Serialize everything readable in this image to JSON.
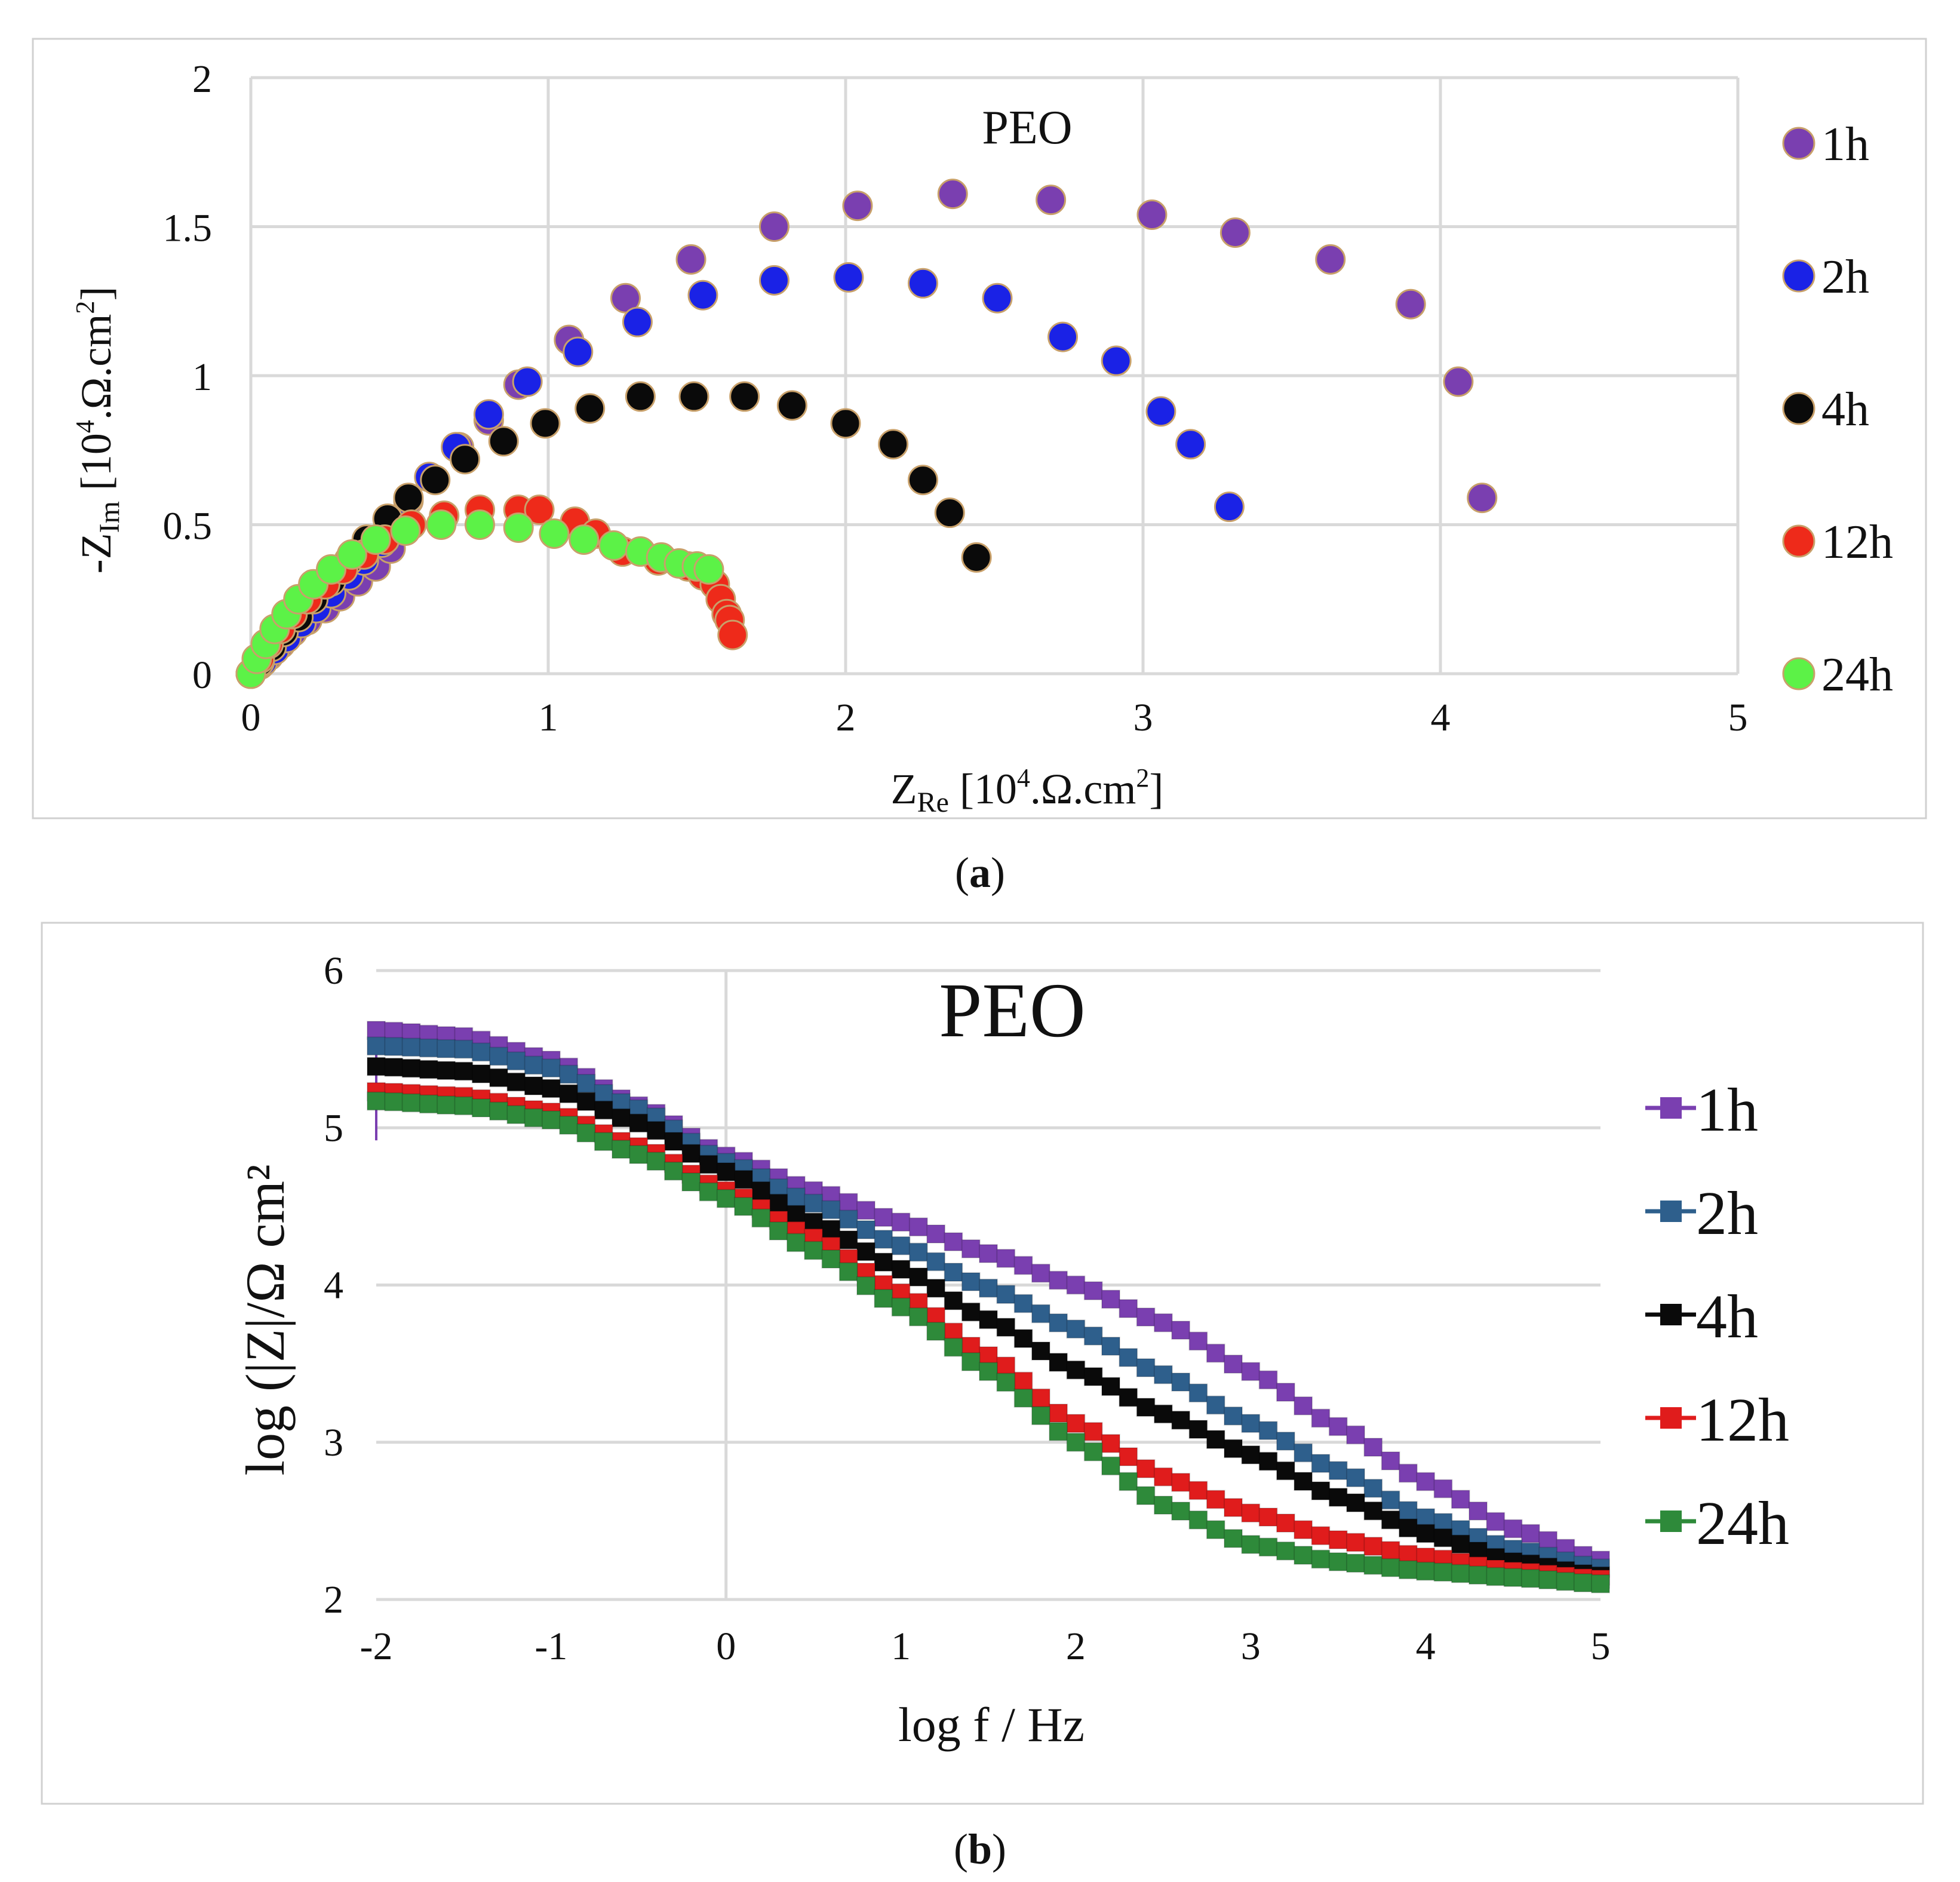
{
  "panels": [
    {
      "label": "a",
      "chart_data": {
        "type": "scatter",
        "title": "PEO",
        "xlabel": "Z_Re [10^4.Ω.cm²]",
        "ylabel": "-Z_Im [10^4.Ω.cm²]",
        "xlim": [
          0,
          5
        ],
        "ylim": [
          0,
          2
        ],
        "xticks": [
          0,
          1,
          2,
          3,
          4,
          5
        ],
        "yticks": [
          0,
          0.5,
          1,
          1.5,
          2
        ],
        "xtick_labels": [
          "0",
          "1",
          "2",
          "3",
          "4",
          "5"
        ],
        "ytick_labels": [
          "0",
          "0.5",
          "1",
          "1.5",
          "2"
        ],
        "grid": "horizontal-and-vertical",
        "legend_position": "right",
        "series": [
          {
            "name": "1h",
            "color": "#7a3fb0",
            "points": [
              [
                0,
                0
              ],
              [
                0.03,
                0.03
              ],
              [
                0.06,
                0.06
              ],
              [
                0.1,
                0.1
              ],
              [
                0.14,
                0.14
              ],
              [
                0.19,
                0.18
              ],
              [
                0.25,
                0.22
              ],
              [
                0.3,
                0.26
              ],
              [
                0.36,
                0.31
              ],
              [
                0.42,
                0.36
              ],
              [
                0.47,
                0.42
              ],
              [
                0.53,
                0.58
              ],
              [
                0.7,
                0.76
              ],
              [
                0.8,
                0.85
              ],
              [
                0.9,
                0.97
              ],
              [
                1.07,
                1.12
              ],
              [
                1.26,
                1.26
              ],
              [
                1.48,
                1.39
              ],
              [
                1.76,
                1.5
              ],
              [
                2.04,
                1.57
              ],
              [
                2.36,
                1.61
              ],
              [
                2.69,
                1.59
              ],
              [
                3.03,
                1.54
              ],
              [
                3.31,
                1.48
              ],
              [
                3.63,
                1.39
              ],
              [
                3.9,
                1.24
              ],
              [
                4.06,
                0.98
              ],
              [
                4.14,
                0.59
              ]
            ]
          },
          {
            "name": "2h",
            "color": "#1a22e6",
            "points": [
              [
                0,
                0
              ],
              [
                0.04,
                0.04
              ],
              [
                0.08,
                0.08
              ],
              [
                0.12,
                0.12
              ],
              [
                0.17,
                0.17
              ],
              [
                0.22,
                0.22
              ],
              [
                0.27,
                0.27
              ],
              [
                0.33,
                0.33
              ],
              [
                0.38,
                0.38
              ],
              [
                0.44,
                0.44
              ],
              [
                0.5,
                0.52
              ],
              [
                0.6,
                0.66
              ],
              [
                0.69,
                0.76
              ],
              [
                0.8,
                0.87
              ],
              [
                0.93,
                0.98
              ],
              [
                1.1,
                1.08
              ],
              [
                1.3,
                1.18
              ],
              [
                1.52,
                1.27
              ],
              [
                1.76,
                1.32
              ],
              [
                2.01,
                1.33
              ],
              [
                2.26,
                1.31
              ],
              [
                2.51,
                1.26
              ],
              [
                2.73,
                1.13
              ],
              [
                2.91,
                1.05
              ],
              [
                3.06,
                0.88
              ],
              [
                3.16,
                0.77
              ],
              [
                3.29,
                0.56
              ]
            ]
          },
          {
            "name": "4h",
            "color": "#0a0a0a",
            "points": [
              [
                0,
                0
              ],
              [
                0.03,
                0.04
              ],
              [
                0.07,
                0.09
              ],
              [
                0.11,
                0.14
              ],
              [
                0.16,
                0.19
              ],
              [
                0.21,
                0.25
              ],
              [
                0.27,
                0.31
              ],
              [
                0.33,
                0.38
              ],
              [
                0.39,
                0.45
              ],
              [
                0.46,
                0.52
              ],
              [
                0.53,
                0.59
              ],
              [
                0.62,
                0.65
              ],
              [
                0.72,
                0.72
              ],
              [
                0.85,
                0.78
              ],
              [
                0.99,
                0.84
              ],
              [
                1.14,
                0.89
              ],
              [
                1.31,
                0.93
              ],
              [
                1.49,
                0.93
              ],
              [
                1.66,
                0.93
              ],
              [
                1.82,
                0.9
              ],
              [
                2.0,
                0.84
              ],
              [
                2.16,
                0.77
              ],
              [
                2.26,
                0.65
              ],
              [
                2.35,
                0.54
              ],
              [
                2.44,
                0.39
              ]
            ]
          },
          {
            "name": "12h",
            "color": "#ee2a1a",
            "points": [
              [
                0,
                0
              ],
              [
                0.03,
                0.05
              ],
              [
                0.06,
                0.1
              ],
              [
                0.1,
                0.15
              ],
              [
                0.14,
                0.2
              ],
              [
                0.19,
                0.25
              ],
              [
                0.25,
                0.3
              ],
              [
                0.31,
                0.35
              ],
              [
                0.38,
                0.4
              ],
              [
                0.45,
                0.45
              ],
              [
                0.54,
                0.5
              ],
              [
                0.65,
                0.53
              ],
              [
                0.77,
                0.55
              ],
              [
                0.9,
                0.55
              ],
              [
                0.97,
                0.55
              ],
              [
                1.09,
                0.51
              ],
              [
                1.16,
                0.47
              ],
              [
                1.25,
                0.41
              ],
              [
                1.37,
                0.38
              ],
              [
                1.47,
                0.36
              ],
              [
                1.52,
                0.33
              ],
              [
                1.56,
                0.3
              ],
              [
                1.58,
                0.25
              ],
              [
                1.6,
                0.2
              ],
              [
                1.61,
                0.18
              ],
              [
                1.62,
                0.13
              ]
            ]
          },
          {
            "name": "24h",
            "color": "#5cf247",
            "points": [
              [
                0,
                0
              ],
              [
                0.02,
                0.05
              ],
              [
                0.05,
                0.1
              ],
              [
                0.08,
                0.15
              ],
              [
                0.12,
                0.2
              ],
              [
                0.16,
                0.25
              ],
              [
                0.21,
                0.3
              ],
              [
                0.27,
                0.35
              ],
              [
                0.34,
                0.4
              ],
              [
                0.42,
                0.45
              ],
              [
                0.52,
                0.48
              ],
              [
                0.64,
                0.5
              ],
              [
                0.77,
                0.5
              ],
              [
                0.9,
                0.49
              ],
              [
                1.02,
                0.47
              ],
              [
                1.12,
                0.45
              ],
              [
                1.22,
                0.43
              ],
              [
                1.31,
                0.41
              ],
              [
                1.38,
                0.39
              ],
              [
                1.44,
                0.37
              ],
              [
                1.5,
                0.36
              ],
              [
                1.54,
                0.35
              ]
            ]
          }
        ]
      }
    },
    {
      "label": "b",
      "chart_data": {
        "type": "line",
        "title": "PEO",
        "xlabel": "log f / Hz",
        "ylabel": "log (|Z|/Ω cm²",
        "xlim": [
          -2,
          5
        ],
        "ylim": [
          2,
          6
        ],
        "xticks": [
          -2,
          -1,
          0,
          1,
          2,
          3,
          4,
          5
        ],
        "yticks": [
          2,
          3,
          4,
          5,
          6
        ],
        "xtick_labels": [
          "-2",
          "-1",
          "0",
          "1",
          "2",
          "3",
          "4",
          "5"
        ],
        "ytick_labels": [
          "2",
          "3",
          "4",
          "5",
          "6"
        ],
        "grid": "horizontal",
        "legend_position": "right",
        "marker": "square",
        "series": [
          {
            "name": "1h",
            "color": "#7a3fb0",
            "anchors": [
              [
                -2,
                5.62
              ],
              [
                -1.5,
                5.58
              ],
              [
                -1,
                5.43
              ],
              [
                -0.5,
                5.14
              ],
              [
                0,
                4.82
              ],
              [
                0.5,
                4.6
              ],
              [
                1,
                4.4
              ],
              [
                1.5,
                4.2
              ],
              [
                2,
                4.0
              ],
              [
                2.5,
                3.76
              ],
              [
                3,
                3.45
              ],
              [
                3.5,
                3.1
              ],
              [
                4,
                2.75
              ],
              [
                4.5,
                2.45
              ],
              [
                5,
                2.25
              ]
            ]
          },
          {
            "name": "2h",
            "color": "#2e5f8c",
            "anchors": [
              [
                -2,
                5.52
              ],
              [
                -1.5,
                5.5
              ],
              [
                -1,
                5.38
              ],
              [
                -0.5,
                5.12
              ],
              [
                0,
                4.78
              ],
              [
                0.5,
                4.52
              ],
              [
                1,
                4.25
              ],
              [
                1.5,
                3.98
              ],
              [
                2,
                3.72
              ],
              [
                2.5,
                3.43
              ],
              [
                3,
                3.12
              ],
              [
                3.5,
                2.82
              ],
              [
                4,
                2.52
              ],
              [
                4.5,
                2.32
              ],
              [
                5,
                2.2
              ]
            ]
          },
          {
            "name": "4h",
            "color": "#0a0a0a",
            "anchors": [
              [
                -2,
                5.39
              ],
              [
                -1.5,
                5.36
              ],
              [
                -1,
                5.25
              ],
              [
                -0.5,
                5.03
              ],
              [
                0,
                4.72
              ],
              [
                0.5,
                4.4
              ],
              [
                1,
                4.1
              ],
              [
                1.5,
                3.78
              ],
              [
                2,
                3.46
              ],
              [
                2.5,
                3.18
              ],
              [
                3,
                2.92
              ],
              [
                3.5,
                2.65
              ],
              [
                4,
                2.42
              ],
              [
                4.5,
                2.24
              ],
              [
                5,
                2.15
              ]
            ]
          },
          {
            "name": "12h",
            "color": "#e01c1c",
            "anchors": [
              [
                -2,
                5.23
              ],
              [
                -1.5,
                5.2
              ],
              [
                -1,
                5.1
              ],
              [
                -0.5,
                4.88
              ],
              [
                0,
                4.6
              ],
              [
                0.5,
                4.3
              ],
              [
                1,
                3.95
              ],
              [
                1.5,
                3.55
              ],
              [
                2,
                3.12
              ],
              [
                2.5,
                2.78
              ],
              [
                3,
                2.55
              ],
              [
                3.5,
                2.38
              ],
              [
                4,
                2.27
              ],
              [
                4.5,
                2.18
              ],
              [
                5,
                2.13
              ]
            ]
          },
          {
            "name": "24h",
            "color": "#2e8a3a",
            "anchors": [
              [
                -2,
                5.17
              ],
              [
                -1.5,
                5.14
              ],
              [
                -1,
                5.05
              ],
              [
                -0.5,
                4.83
              ],
              [
                0,
                4.55
              ],
              [
                0.5,
                4.22
              ],
              [
                1,
                3.86
              ],
              [
                1.5,
                3.45
              ],
              [
                2,
                3.0
              ],
              [
                2.5,
                2.6
              ],
              [
                3,
                2.35
              ],
              [
                3.5,
                2.24
              ],
              [
                4,
                2.18
              ],
              [
                4.5,
                2.14
              ],
              [
                5,
                2.1
              ]
            ]
          }
        ]
      }
    }
  ]
}
